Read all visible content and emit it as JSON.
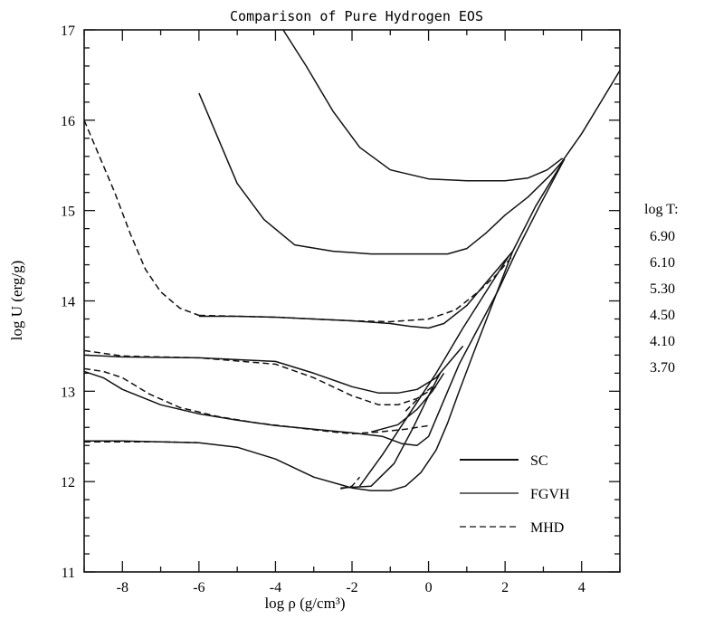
{
  "chart_data": {
    "type": "line",
    "title": "Comparison of Pure Hydrogen EOS",
    "xlabel": "log ρ (g/cm³)",
    "ylabel": "log U (erg/g)",
    "xlim": [
      -9,
      5
    ],
    "ylim": [
      11,
      17
    ],
    "x_ticks": [
      "-8",
      "-6",
      "-4",
      "-2",
      "0",
      "2",
      "4"
    ],
    "y_ticks": [
      "11",
      "12",
      "13",
      "14",
      "15",
      "16",
      "17"
    ],
    "grid": false,
    "legend_position": "bottom-right",
    "legend": [
      {
        "name": "SC",
        "style": "solid-thick"
      },
      {
        "name": "FGVH",
        "style": "solid-thin"
      },
      {
        "name": "MHD",
        "style": "dashed"
      }
    ],
    "logT_title": "log T:",
    "logT_values": [
      "6.90",
      "6.10",
      "5.30",
      "4.50",
      "4.10",
      "3.70"
    ],
    "series": [
      {
        "style": "solid",
        "points": [
          [
            -3.8,
            17.0
          ],
          [
            -3.2,
            16.6
          ],
          [
            -2.5,
            16.1
          ],
          [
            -1.8,
            15.7
          ],
          [
            -1.0,
            15.45
          ],
          [
            0,
            15.35
          ],
          [
            1,
            15.33
          ],
          [
            2,
            15.33
          ],
          [
            2.6,
            15.36
          ],
          [
            3.1,
            15.45
          ],
          [
            3.5,
            15.58
          ]
        ]
      },
      {
        "style": "solid",
        "points": [
          [
            -6.0,
            16.3
          ],
          [
            -5.5,
            15.8
          ],
          [
            -5.0,
            15.3
          ],
          [
            -4.3,
            14.9
          ],
          [
            -3.5,
            14.62
          ],
          [
            -2.5,
            14.55
          ],
          [
            -1.5,
            14.52
          ],
          [
            -0.5,
            14.52
          ],
          [
            0.5,
            14.52
          ],
          [
            1.0,
            14.58
          ],
          [
            1.5,
            14.75
          ],
          [
            2.0,
            14.95
          ],
          [
            2.6,
            15.15
          ],
          [
            3.2,
            15.4
          ],
          [
            3.55,
            15.57
          ]
        ]
      },
      {
        "style": "solid",
        "points": [
          [
            -6.0,
            13.83
          ],
          [
            -5.0,
            13.83
          ],
          [
            -4.0,
            13.82
          ],
          [
            -3.0,
            13.8
          ],
          [
            -2.0,
            13.78
          ],
          [
            -1.0,
            13.75
          ],
          [
            -0.5,
            13.72
          ],
          [
            0,
            13.7
          ],
          [
            0.4,
            13.75
          ],
          [
            1.0,
            13.95
          ],
          [
            1.5,
            14.2
          ],
          [
            2.2,
            14.55
          ]
        ]
      },
      {
        "style": "solid",
        "points": [
          [
            -9.0,
            13.4
          ],
          [
            -8.0,
            13.38
          ],
          [
            -6.0,
            13.37
          ],
          [
            -4.0,
            13.33
          ],
          [
            -3.0,
            13.2
          ],
          [
            -2.0,
            13.05
          ],
          [
            -1.3,
            12.98
          ],
          [
            -0.8,
            12.98
          ],
          [
            -0.3,
            13.02
          ],
          [
            0.2,
            13.15
          ],
          [
            0.6,
            13.35
          ],
          [
            0.9,
            13.5
          ]
        ]
      },
      {
        "style": "solid",
        "points": [
          [
            -9.0,
            13.22
          ],
          [
            -8.5,
            13.15
          ],
          [
            -8.0,
            13.02
          ],
          [
            -7.0,
            12.85
          ],
          [
            -6.0,
            12.75
          ],
          [
            -5.0,
            12.68
          ],
          [
            -4.0,
            12.62
          ],
          [
            -3.0,
            12.58
          ],
          [
            -2.0,
            12.54
          ],
          [
            -1.2,
            12.5
          ],
          [
            -0.7,
            12.42
          ],
          [
            -0.3,
            12.4
          ],
          [
            0,
            12.5
          ],
          [
            0.4,
            12.9
          ],
          [
            0.8,
            13.3
          ],
          [
            1.3,
            13.7
          ],
          [
            1.8,
            14.1
          ],
          [
            2.3,
            14.55
          ],
          [
            2.9,
            15.05
          ],
          [
            3.55,
            15.57
          ]
        ]
      },
      {
        "style": "solid",
        "points": [
          [
            -9.0,
            12.45
          ],
          [
            -8.0,
            12.45
          ],
          [
            -7.0,
            12.44
          ],
          [
            -6.0,
            12.43
          ],
          [
            -5.0,
            12.38
          ],
          [
            -4.0,
            12.25
          ],
          [
            -3.0,
            12.05
          ],
          [
            -2.0,
            11.93
          ],
          [
            -1.5,
            11.9
          ],
          [
            -1.0,
            11.9
          ],
          [
            -0.6,
            11.95
          ],
          [
            -0.2,
            12.1
          ],
          [
            0.2,
            12.35
          ],
          [
            0.5,
            12.65
          ],
          [
            0.8,
            13.0
          ],
          [
            1.2,
            13.45
          ],
          [
            1.7,
            14.0
          ],
          [
            2.2,
            14.55
          ],
          [
            2.8,
            15.05
          ],
          [
            3.55,
            15.57
          ]
        ]
      },
      {
        "style": "solid",
        "points": [
          [
            3.5,
            15.55
          ],
          [
            4.0,
            15.85
          ],
          [
            4.5,
            16.2
          ],
          [
            5.0,
            16.55
          ]
        ]
      },
      {
        "style": "solid",
        "points": [
          [
            -1.8,
            11.95
          ],
          [
            -1.2,
            12.3
          ],
          [
            -0.5,
            12.75
          ],
          [
            0.2,
            13.2
          ],
          [
            0.9,
            13.7
          ],
          [
            1.5,
            14.1
          ],
          [
            2.1,
            14.5
          ]
        ]
      },
      {
        "style": "solid",
        "points": [
          [
            -2.3,
            11.93
          ],
          [
            -1.5,
            11.95
          ],
          [
            -0.9,
            12.2
          ],
          [
            -0.4,
            12.6
          ],
          [
            0,
            12.95
          ],
          [
            0.3,
            13.2
          ]
        ]
      },
      {
        "style": "solid",
        "points": [
          [
            -1.5,
            12.55
          ],
          [
            -0.8,
            12.63
          ],
          [
            -0.3,
            12.8
          ],
          [
            0.1,
            13.0
          ],
          [
            0.4,
            13.2
          ]
        ]
      },
      {
        "style": "dashed",
        "points": [
          [
            -9.0,
            16.0
          ],
          [
            -8.6,
            15.6
          ],
          [
            -8.2,
            15.2
          ],
          [
            -7.8,
            14.75
          ],
          [
            -7.4,
            14.35
          ],
          [
            -7.0,
            14.1
          ],
          [
            -6.5,
            13.92
          ],
          [
            -6.0,
            13.84
          ]
        ]
      },
      {
        "style": "dashed",
        "points": [
          [
            -6.0,
            13.84
          ],
          [
            -4.0,
            13.82
          ],
          [
            -2.0,
            13.78
          ],
          [
            -1.0,
            13.77
          ],
          [
            0,
            13.8
          ],
          [
            0.7,
            13.9
          ],
          [
            1.3,
            14.1
          ],
          [
            1.8,
            14.3
          ],
          [
            2.2,
            14.5
          ]
        ]
      },
      {
        "style": "dashed",
        "points": [
          [
            -9.0,
            13.45
          ],
          [
            -8.0,
            13.39
          ],
          [
            -6.0,
            13.37
          ],
          [
            -4.0,
            13.3
          ],
          [
            -3.0,
            13.15
          ],
          [
            -2.0,
            12.95
          ],
          [
            -1.3,
            12.85
          ],
          [
            -0.8,
            12.85
          ],
          [
            -0.3,
            12.92
          ],
          [
            0.2,
            13.05
          ]
        ]
      },
      {
        "style": "dashed",
        "points": [
          [
            -9.0,
            13.25
          ],
          [
            -8.5,
            13.22
          ],
          [
            -8.0,
            13.15
          ],
          [
            -7.3,
            12.97
          ],
          [
            -6.5,
            12.82
          ],
          [
            -5.5,
            12.72
          ],
          [
            -4.5,
            12.65
          ],
          [
            -3.5,
            12.6
          ],
          [
            -2.5,
            12.55
          ],
          [
            -2.0,
            12.53
          ],
          [
            -1.3,
            12.55
          ],
          [
            -0.6,
            12.58
          ],
          [
            0,
            12.62
          ]
        ]
      },
      {
        "style": "dashed",
        "points": [
          [
            -9.0,
            12.44
          ],
          [
            -8.0,
            12.44
          ],
          [
            -7.0,
            12.44
          ],
          [
            -6.0,
            12.43
          ]
        ]
      },
      {
        "style": "dashed",
        "points": [
          [
            -2.3,
            11.92
          ],
          [
            -2.0,
            11.95
          ],
          [
            -1.8,
            12.05
          ]
        ]
      },
      {
        "style": "dashed",
        "points": [
          [
            -0.6,
            12.78
          ],
          [
            -0.2,
            12.95
          ],
          [
            0.1,
            13.05
          ]
        ]
      }
    ]
  }
}
